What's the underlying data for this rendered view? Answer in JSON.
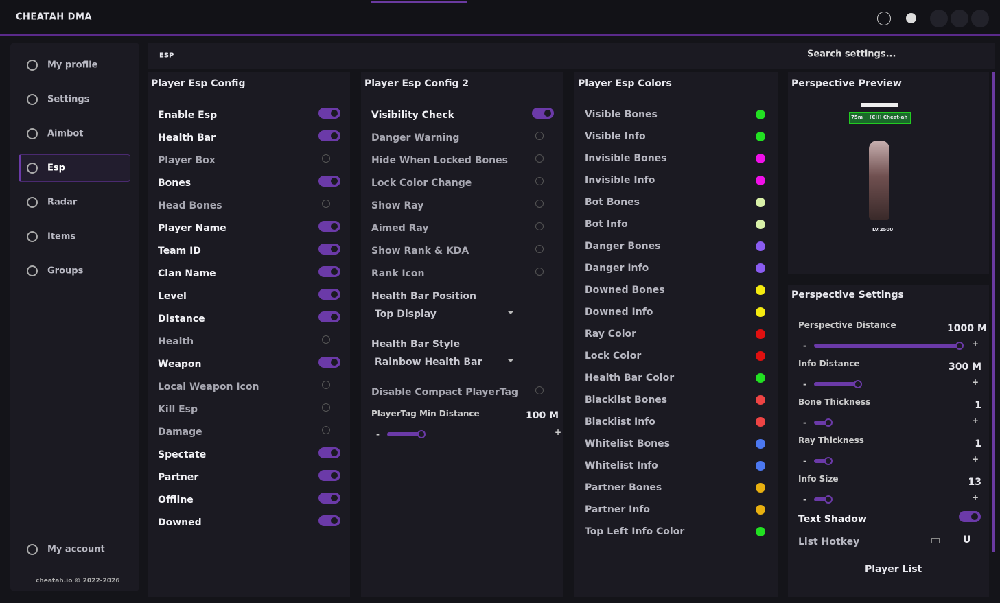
{
  "app": {
    "title": "CHEATAH DMA"
  },
  "sidebar": {
    "items": [
      "My profile",
      "Settings",
      "Aimbot",
      "Esp",
      "Radar",
      "Items",
      "Groups"
    ],
    "active_index": 3,
    "account": "My account",
    "footer": "cheatah.io © 2022-2026"
  },
  "topbar": {
    "tab": "ESP",
    "search": "Search settings..."
  },
  "slider_buttons": [
    "-",
    "+"
  ],
  "config": {
    "title": "Player Esp Config",
    "items": [
      {
        "label": "Enable Esp",
        "on": true
      },
      {
        "label": "Health Bar",
        "on": true
      },
      {
        "label": "Player Box",
        "on": false
      },
      {
        "label": "Bones",
        "on": true
      },
      {
        "label": "Head Bones",
        "on": false
      },
      {
        "label": "Player Name",
        "on": true
      },
      {
        "label": "Team ID",
        "on": true
      },
      {
        "label": "Clan Name",
        "on": true
      },
      {
        "label": "Level",
        "on": true
      },
      {
        "label": "Distance",
        "on": true
      },
      {
        "label": "Health",
        "on": false
      },
      {
        "label": "Weapon",
        "on": true
      },
      {
        "label": "Local Weapon Icon",
        "on": false
      },
      {
        "label": "Kill Esp",
        "on": false
      },
      {
        "label": "Damage",
        "on": false
      },
      {
        "label": "Spectate",
        "on": true
      },
      {
        "label": "Partner",
        "on": true
      },
      {
        "label": "Offline",
        "on": true
      },
      {
        "label": "Downed",
        "on": true
      }
    ]
  },
  "config2": {
    "title": "Player Esp Config 2",
    "items": [
      {
        "kind": "toggle",
        "label": "Visibility Check",
        "on": true
      },
      {
        "kind": "toggle",
        "label": "Danger Warning",
        "on": false
      },
      {
        "kind": "toggle",
        "label": "Hide When Locked Bones",
        "on": false
      },
      {
        "kind": "toggle",
        "label": "Lock Color Change",
        "on": false
      },
      {
        "kind": "toggle",
        "label": "Show Ray",
        "on": false
      },
      {
        "kind": "toggle",
        "label": "Aimed Ray",
        "on": false
      },
      {
        "kind": "toggle",
        "label": "Show Rank & KDA",
        "on": false
      },
      {
        "kind": "toggle",
        "label": "Rank Icon",
        "on": false
      },
      {
        "kind": "dropdown",
        "label": "Health Bar Position",
        "value": "Top Display"
      },
      {
        "kind": "dropdown",
        "label": "Health Bar Style",
        "value": "Rainbow Health Bar"
      },
      {
        "kind": "toggle",
        "label": "Disable Compact PlayerTag",
        "on": false
      },
      {
        "kind": "slider",
        "label": "PlayerTag Min Distance",
        "value": "100 M"
      }
    ]
  },
  "colors": {
    "title": "Player Esp Colors",
    "items": [
      {
        "label": "Visible Bones",
        "color": "#22e022"
      },
      {
        "label": "Visible Info",
        "color": "#22e022"
      },
      {
        "label": "Invisible Bones",
        "color": "#f010e8"
      },
      {
        "label": "Invisible Info",
        "color": "#f010e8"
      },
      {
        "label": "Bot Bones",
        "color": "#d8f0a8"
      },
      {
        "label": "Bot Info",
        "color": "#d8f0a8"
      },
      {
        "label": "Danger Bones",
        "color": "#8a5cf0"
      },
      {
        "label": "Danger Info",
        "color": "#8a5cf0"
      },
      {
        "label": "Downed Bones",
        "color": "#f4ea10"
      },
      {
        "label": "Downed Info",
        "color": "#f4ea10"
      },
      {
        "label": "Ray Color",
        "color": "#e01010"
      },
      {
        "label": "Lock Color",
        "color": "#e01010"
      },
      {
        "label": "Health Bar Color",
        "color": "#22e022"
      },
      {
        "label": "Blacklist Bones",
        "color": "#ee4444"
      },
      {
        "label": "Blacklist Info",
        "color": "#ee4444"
      },
      {
        "label": "Whitelist Bones",
        "color": "#4c78f0"
      },
      {
        "label": "Whitelist Info",
        "color": "#4c78f0"
      },
      {
        "label": "Partner Bones",
        "color": "#e8b010"
      },
      {
        "label": "Partner Info",
        "color": "#e8b010"
      },
      {
        "label": "Top Left Info Color",
        "color": "#22e022"
      }
    ]
  },
  "preview": {
    "title": "Perspective Preview",
    "distance": "75m",
    "name": "[CH] Cheat-ah",
    "level": "LV.2500"
  },
  "perspective": {
    "title": "Perspective Settings",
    "sliders": [
      {
        "label": "Perspective Distance",
        "value": "1000 M"
      },
      {
        "label": "Info Distance",
        "value": "300 M"
      },
      {
        "label": "Bone Thickness",
        "value": "1"
      },
      {
        "label": "Ray Thickness",
        "value": "1"
      },
      {
        "label": "Info Size",
        "value": "13"
      }
    ],
    "text_shadow": {
      "label": "Text Shadow",
      "on": true
    },
    "hotkey": {
      "label": "List Hotkey",
      "key": "U"
    },
    "button": "Player List"
  }
}
